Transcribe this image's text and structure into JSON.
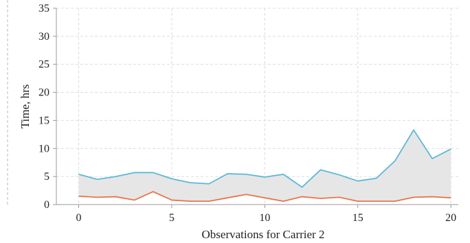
{
  "chart_data": {
    "type": "area",
    "xlabel": "Observations for Carrier 2",
    "ylabel": "Time, hrs",
    "xlim": [
      -1.2,
      20.4
    ],
    "ylim": [
      0,
      35
    ],
    "x_ticks": [
      0,
      5,
      10,
      15,
      20
    ],
    "y_ticks": [
      0,
      5,
      10,
      15,
      20,
      25,
      30,
      35
    ],
    "x_tick_labels": [
      "0",
      "5",
      "10",
      "15",
      "20"
    ],
    "y_tick_labels": [
      "0",
      "5",
      "10",
      "15",
      "20",
      "25",
      "30",
      "35"
    ],
    "grid": true,
    "legend": "none",
    "x": [
      0,
      1,
      2,
      3,
      4,
      5,
      6,
      7,
      8,
      9,
      10,
      11,
      12,
      13,
      14,
      15,
      16,
      17,
      18,
      19,
      20
    ],
    "band_fill_color": "#e6e6e6",
    "series": [
      {
        "color": "#5bb8d8",
        "values": [
          5.4,
          4.5,
          5.0,
          5.7,
          5.7,
          4.6,
          3.9,
          3.7,
          5.5,
          5.4,
          4.9,
          5.4,
          3.1,
          6.2,
          5.3,
          4.2,
          4.7,
          7.8,
          13.3,
          8.2,
          9.9
        ]
      },
      {
        "color": "#e8744a",
        "values": [
          1.5,
          1.3,
          1.4,
          0.8,
          2.3,
          0.8,
          0.6,
          0.6,
          1.2,
          1.8,
          1.2,
          0.6,
          1.4,
          1.1,
          1.3,
          0.6,
          0.6,
          0.6,
          1.3,
          1.4,
          1.2
        ]
      }
    ]
  }
}
